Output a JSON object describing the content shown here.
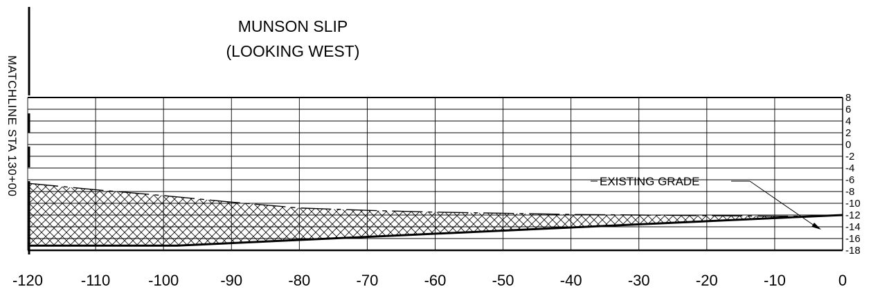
{
  "title": {
    "line1": "MUNSON SLIP",
    "line2": "(LOOKING WEST)"
  },
  "matchline": "MATCHLINE STA 130+00",
  "annotation": {
    "label": "EXISTING GRADE"
  },
  "axes": {
    "x_ticks": [
      "-120",
      "-110",
      "-100",
      "-90",
      "-80",
      "-70",
      "-60",
      "-50",
      "-40",
      "-30",
      "-20",
      "-10",
      "0"
    ],
    "y_ticks": [
      "8",
      "6",
      "4",
      "2",
      "0",
      "-2",
      "-4",
      "-6",
      "-8",
      "-10",
      "-12",
      "-14",
      "-16",
      "-18"
    ],
    "x_range": [
      -120,
      0
    ],
    "y_range": [
      -18,
      8
    ],
    "grid": true
  },
  "profile": {
    "existing_grade": [
      [
        -120,
        -6.6
      ],
      [
        -110,
        -7.7
      ],
      [
        -100,
        -8.7
      ],
      [
        -90,
        -9.8
      ],
      [
        -80,
        -10.8
      ],
      [
        -70,
        -11.2
      ],
      [
        -60,
        -11.5
      ],
      [
        -50,
        -11.7
      ],
      [
        -40,
        -11.9
      ],
      [
        -30,
        -12.0
      ],
      [
        -20,
        -12.1
      ],
      [
        -10,
        -12.2
      ],
      [
        -4,
        -12.2
      ]
    ],
    "proposed_bottom": [
      [
        -120,
        -17.2
      ],
      [
        -98,
        -17.2
      ],
      [
        -4,
        -12.2
      ],
      [
        0,
        -12.0
      ]
    ],
    "hatch": "crosshatch"
  },
  "colors": {
    "line": "#000000",
    "background": "#ffffff"
  }
}
